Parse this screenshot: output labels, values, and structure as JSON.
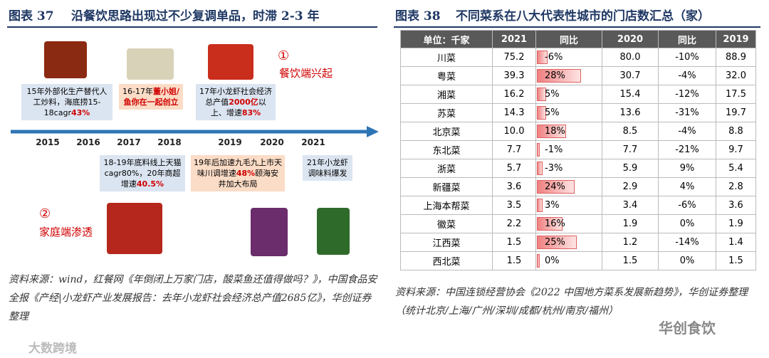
{
  "left": {
    "label": "图表 37",
    "title": "沿餐饮思路出现过不少复调单品，时滞 2-3 年",
    "years": [
      "2015",
      "2016",
      "2017",
      "2018",
      "2019",
      "2020",
      "2021"
    ],
    "stage1": {
      "num": "①",
      "text": "餐饮端兴起"
    },
    "stage2": {
      "num": "②",
      "text": "家庭端渗透"
    },
    "boxes": [
      [
        {
          "text": "15年外部化生产替代人工炒料，海底捞15-18cagr"
        },
        {
          "text": "43%",
          "color": "#d00000"
        }
      ],
      [
        {
          "text": "16-17年"
        },
        {
          "text": "董小姐/鱼你在一起创立",
          "color": "#d00000"
        }
      ],
      [
        {
          "text": "17年小龙虾社会经济总产值"
        },
        {
          "text": "2000亿",
          "color": "#d00000"
        },
        {
          "text": "以上、增速"
        },
        {
          "text": "83%",
          "color": "#d00000"
        }
      ],
      [
        {
          "text": "18-19年底料线上天猫cagr80%，20年商超增速"
        },
        {
          "text": "40.5%",
          "color": "#d00000"
        }
      ],
      [
        {
          "text": "19年后加速九毛九上市天味川调增速"
        },
        {
          "text": "48%",
          "color": "#d00000"
        },
        {
          "text": "颐海安井加大布局"
        }
      ],
      [
        {
          "text": "21年小龙虾调味料爆发"
        }
      ]
    ],
    "source": "资料来源：wind，红餐网《年倒闭上万家门店，酸菜鱼还值得做吗？》，中国食品安全报《产经|小龙虾产业发展报告：去年小龙虾社会经济总产值2685亿》，华创证券整理"
  },
  "right": {
    "label": "图表 38",
    "title": "不同菜系在八大代表性城市的门店数汇总（家）",
    "table": {
      "header": [
        "单位：千家",
        "2021",
        "同比",
        "2020",
        "同比",
        "2019"
      ],
      "rows": [
        {
          "name": "川菜",
          "y2021": "75.2",
          "yoy2021": -6,
          "yoy2021_label": "-6%",
          "y2020": "80.0",
          "yoy2020": "-10%",
          "y2019": "88.9"
        },
        {
          "name": "粤菜",
          "y2021": "39.3",
          "yoy2021": 28,
          "yoy2021_label": "28%",
          "y2020": "30.7",
          "yoy2020": "-4%",
          "y2019": "32.0"
        },
        {
          "name": "湘菜",
          "y2021": "16.2",
          "yoy2021": 5,
          "yoy2021_label": "5%",
          "y2020": "15.4",
          "yoy2020": "-12%",
          "y2019": "17.5"
        },
        {
          "name": "苏菜",
          "y2021": "14.3",
          "yoy2021": 5,
          "yoy2021_label": "5%",
          "y2020": "13.6",
          "yoy2020": "-31%",
          "y2019": "19.7"
        },
        {
          "name": "北京菜",
          "y2021": "10.0",
          "yoy2021": 18,
          "yoy2021_label": "18%",
          "y2020": "8.5",
          "yoy2020": "-4%",
          "y2019": "8.8"
        },
        {
          "name": "东北菜",
          "y2021": "7.7",
          "yoy2021": -1,
          "yoy2021_label": "-1%",
          "y2020": "7.7",
          "yoy2020": "-21%",
          "y2019": "9.7"
        },
        {
          "name": "浙菜",
          "y2021": "5.7",
          "yoy2021": -3,
          "yoy2021_label": "-3%",
          "y2020": "5.9",
          "yoy2020": "9%",
          "y2019": "5.4"
        },
        {
          "name": "新疆菜",
          "y2021": "3.6",
          "yoy2021": 24,
          "yoy2021_label": "24%",
          "y2020": "2.9",
          "yoy2020": "4%",
          "y2019": "2.8"
        },
        {
          "name": "上海本帮菜",
          "y2021": "3.5",
          "yoy2021": 3,
          "yoy2021_label": "3%",
          "y2020": "3.4",
          "yoy2020": "-6%",
          "y2019": "3.6"
        },
        {
          "name": "徽菜",
          "y2021": "2.2",
          "yoy2021": 16,
          "yoy2021_label": "16%",
          "y2020": "1.9",
          "yoy2020": "0%",
          "y2019": "1.9"
        },
        {
          "name": "江西菜",
          "y2021": "1.5",
          "yoy2021": 25,
          "yoy2021_label": "25%",
          "y2020": "1.2",
          "yoy2020": "-14%",
          "y2019": "1.4"
        },
        {
          "name": "西北菜",
          "y2021": "1.5",
          "yoy2021": 0,
          "yoy2021_label": "0%",
          "y2020": "1.5",
          "yoy2020": "0%",
          "y2019": "1.5"
        }
      ]
    },
    "source": "资料来源：中国连锁经营协会《2022 中国地方菜系发展新趋势》，华创证券整理（统计北京/上海/广州/深圳/成都/杭州/南京/福州）"
  },
  "watermarks": [
    "华创食饮",
    "大数跨境"
  ]
}
